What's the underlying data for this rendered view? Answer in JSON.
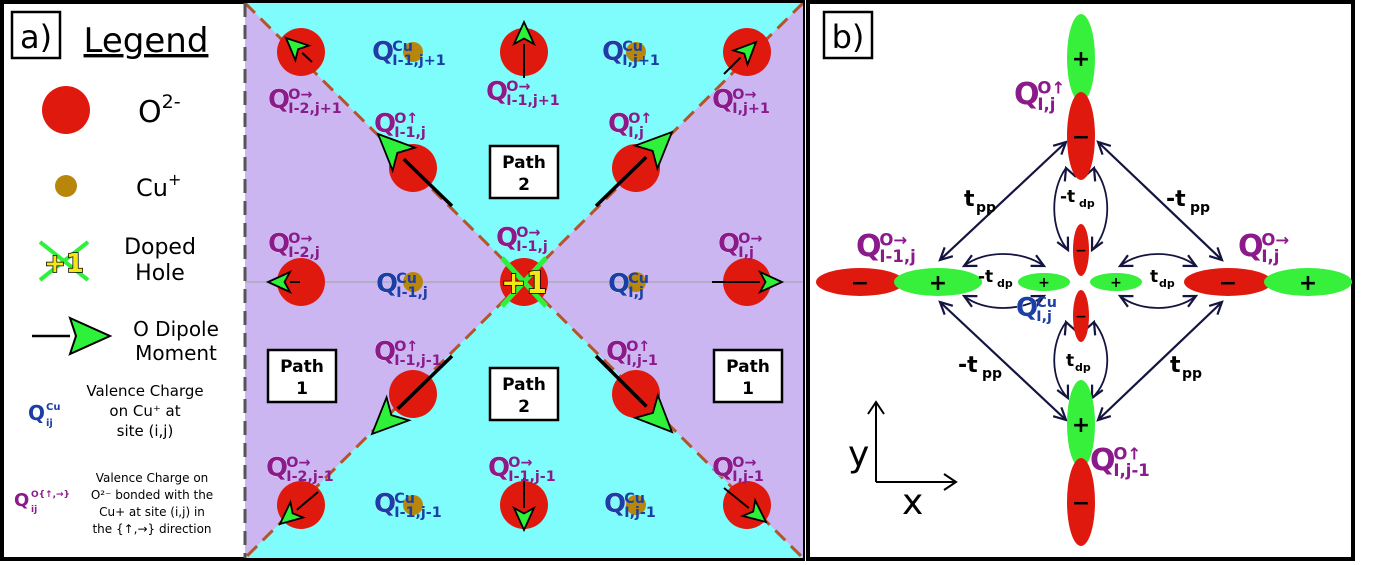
{
  "colors": {
    "oxygen": "#e0190f",
    "copper": "#b8860b",
    "cyan_bg": "#7ffcfc",
    "purple_bg": "#cbb6f2",
    "arrow_green": "#2ef23a",
    "cu_label": "#1b3fa6",
    "o_label": "#8b1a8b",
    "dashed_line": "#b5532a",
    "lobe_green": "#36f03c",
    "lobe_red": "#e0190f"
  },
  "panel_a": {
    "tag": "a)",
    "legend_title": "Legend",
    "oxygen_label": "O",
    "oxygen_sup": "2-",
    "copper_label": "Cu",
    "copper_sup": "+",
    "doped_hole_label_1": "Doped",
    "doped_hole_label_2": "Hole",
    "hole_symbol": "+1",
    "dipole_label_1": "O Dipole",
    "dipole_label_2": "Moment",
    "cu_charge_desc": [
      "Valence Charge",
      "on Cu⁺ at",
      "site (i,j)"
    ],
    "o_charge_desc": [
      "Valence Charge on",
      "O²⁻ bonded with the",
      "Cu+ at site (i,j) in",
      "the {↑,→} direction"
    ],
    "legend_q_sub": "ij",
    "legend_cu_sup": "Cu",
    "legend_o_sup": "O{↑,→}",
    "path1": "Path",
    "path1_num": "1",
    "path2": "Path",
    "path2_num": "2",
    "labels": {
      "cu_l1_j1": {
        "sup": "Cu",
        "sub": "I-1,j+1"
      },
      "cu_l_j1": {
        "sup": "Cu",
        "sub": "I,j+1"
      },
      "o_l2_j1": {
        "sup": "O→",
        "sub": "I-2,j+1"
      },
      "o_l1_j1_r": {
        "sup": "O→",
        "sub": "I-1,j+1"
      },
      "o_l_j1_r": {
        "sup": "O→",
        "sub": "I,j+1"
      },
      "o_l1_j_u": {
        "sup": "O↑",
        "sub": "I-1,j"
      },
      "o_l_j_u": {
        "sup": "O↑",
        "sub": "I,j"
      },
      "o_l2_j_r": {
        "sup": "O→",
        "sub": "I-2,j"
      },
      "o_l1_j_r": {
        "sup": "O→",
        "sub": "I-1,j"
      },
      "o_l_j_r": {
        "sup": "O→",
        "sub": "I,j"
      },
      "cu_l1_j": {
        "sup": "Cu",
        "sub": "I-1,j"
      },
      "cu_l_j": {
        "sup": "Cu",
        "sub": "I,j"
      },
      "o_l1_jm1_u": {
        "sup": "O↑",
        "sub": "I-1,j-1"
      },
      "o_l_jm1_u": {
        "sup": "O↑",
        "sub": "I,j-1"
      },
      "o_l2_jm1_r": {
        "sup": "O→",
        "sub": "I-2,j-1"
      },
      "o_l1_jm1_r": {
        "sup": "O→",
        "sub": "I-1,j-1"
      },
      "o_l_jm1_r": {
        "sup": "O→",
        "sub": "I,j-1"
      },
      "cu_l1_jm1": {
        "sup": "Cu",
        "sub": "I-1,j-1"
      },
      "cu_l_jm1": {
        "sup": "Cu",
        "sub": "I,j-1"
      }
    }
  },
  "panel_b": {
    "tag": "b)",
    "plus": "+",
    "minus": "−",
    "t": "t",
    "pp": "pp",
    "dp": "dp",
    "neg_t": "-t",
    "labels": {
      "o_up_top": {
        "sup": "O↑",
        "sub": "I,j"
      },
      "o_right_left": {
        "sup": "O→",
        "sub": "I-1,j"
      },
      "o_right_right": {
        "sup": "O→",
        "sub": "I,j"
      },
      "cu_center": {
        "sup": "Cu",
        "sub": "I,j"
      },
      "o_up_bottom": {
        "sup": "O↑",
        "sub": "I,j-1"
      }
    },
    "axis_y": "y",
    "axis_x": "x"
  }
}
